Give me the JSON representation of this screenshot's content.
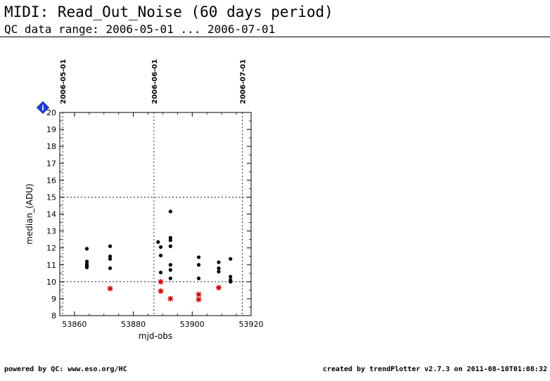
{
  "header": {
    "title": "MIDI: Read_Out_Noise (60 days period)",
    "subtitle": "QC data range: 2006-05-01 ... 2006-07-01"
  },
  "footer": {
    "left": "powered by QC: www.eso.org/HC",
    "right": "created by trendPlotter v2.7.3 on 2011-08-10T01:08:32"
  },
  "chart_data": {
    "type": "scatter",
    "xlabel": "mjd-obs",
    "ylabel": "median_(ADU)",
    "xlim": [
      53855,
      53920
    ],
    "ylim": [
      8,
      20
    ],
    "xticks": [
      53860,
      53880,
      53900,
      53920
    ],
    "yticks": [
      8,
      9,
      10,
      11,
      12,
      13,
      14,
      15,
      16,
      17,
      18,
      19,
      20
    ],
    "date_markers": [
      {
        "label": "2006-05-01",
        "x": 53856
      },
      {
        "label": "2006-06-01",
        "x": 53887
      },
      {
        "label": "2006-07-01",
        "x": 53917
      }
    ],
    "threshold_lines": [
      10,
      15
    ],
    "info_badge": "i",
    "series": [
      {
        "marker": "dot",
        "color": "#000000",
        "points": [
          [
            53864.2,
            11.95
          ],
          [
            53864.2,
            11.2
          ],
          [
            53864.2,
            11.05
          ],
          [
            53864.2,
            10.95
          ],
          [
            53864.2,
            10.85
          ],
          [
            53872.1,
            12.1
          ],
          [
            53872.1,
            11.5
          ],
          [
            53872.1,
            11.35
          ],
          [
            53872.1,
            10.8
          ],
          [
            53888.4,
            12.35
          ],
          [
            53889.3,
            12.05
          ],
          [
            53889.3,
            11.55
          ],
          [
            53889.3,
            10.55
          ],
          [
            53892.6,
            14.15
          ],
          [
            53892.6,
            12.6
          ],
          [
            53892.6,
            12.45
          ],
          [
            53892.6,
            12.1
          ],
          [
            53892.6,
            11.0
          ],
          [
            53892.6,
            10.7
          ],
          [
            53892.6,
            10.2
          ],
          [
            53902.2,
            11.45
          ],
          [
            53902.2,
            11.0
          ],
          [
            53902.2,
            10.2
          ],
          [
            53909.0,
            11.15
          ],
          [
            53909.0,
            10.8
          ],
          [
            53909.0,
            10.6
          ],
          [
            53913.0,
            11.35
          ],
          [
            53913.0,
            10.3
          ],
          [
            53913.0,
            10.1
          ],
          [
            53913.0,
            10.0
          ]
        ]
      },
      {
        "marker": "star",
        "color": "#cc0000",
        "points": [
          [
            53872.1,
            9.6
          ],
          [
            53889.3,
            10.0
          ],
          [
            53889.3,
            9.45
          ],
          [
            53892.6,
            9.0
          ],
          [
            53902.2,
            9.25
          ],
          [
            53902.2,
            8.95
          ],
          [
            53909.0,
            9.65
          ]
        ]
      }
    ]
  }
}
